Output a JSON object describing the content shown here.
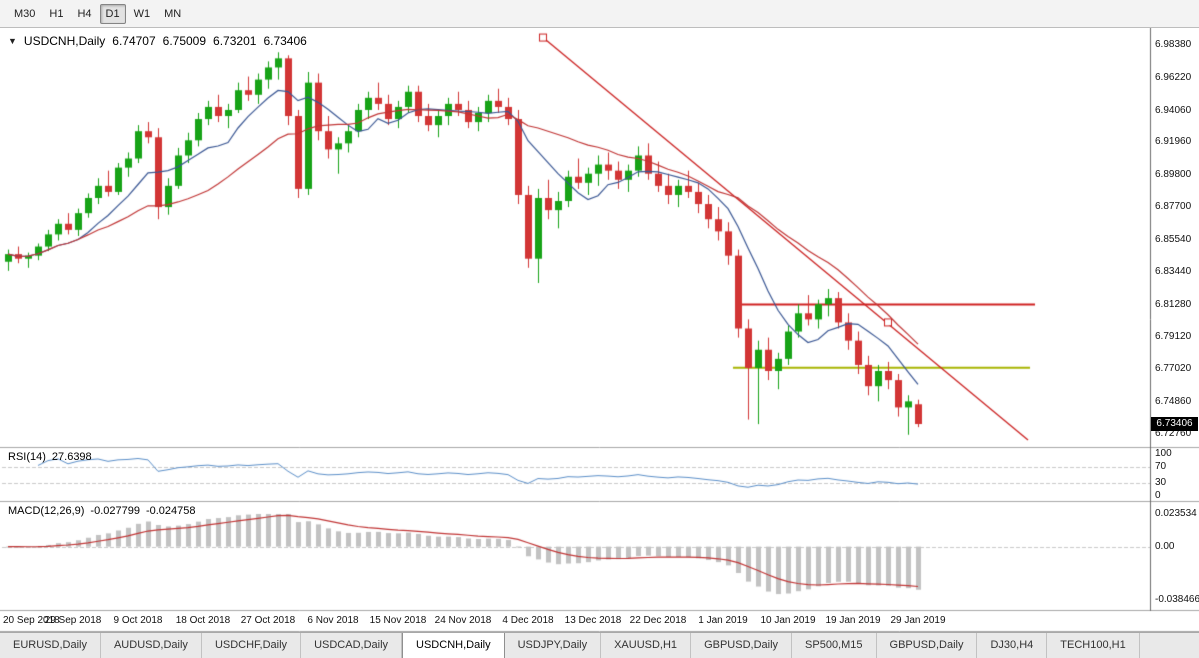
{
  "toolbar": {
    "timeframes": [
      {
        "label": "M30",
        "active": false
      },
      {
        "label": "H1",
        "active": false
      },
      {
        "label": "H4",
        "active": false
      },
      {
        "label": "D1",
        "active": true
      },
      {
        "label": "W1",
        "active": false
      },
      {
        "label": "MN",
        "active": false
      }
    ]
  },
  "chart_header": {
    "symbol": "USDCNH,Daily",
    "open": "6.74707",
    "high": "6.75009",
    "low": "6.73201",
    "close": "6.73406"
  },
  "rsi": {
    "label": "RSI(14)",
    "value": "27.6398",
    "levels": [
      "100",
      "70",
      "30",
      "0"
    ]
  },
  "macd": {
    "label": "MACD(12,26,9)",
    "value_macd": "-0.027799",
    "value_signal": "-0.024758",
    "axis": [
      "0.023534",
      "0.00",
      "-0.038466"
    ]
  },
  "chart_data": {
    "type": "candlestick",
    "symbol": "USDCNH",
    "timeframe": "Daily",
    "current_price": 6.73406,
    "y_axis": {
      "labels": [
        "6.98380",
        "6.96220",
        "6.94060",
        "6.91960",
        "6.89800",
        "6.87700",
        "6.85540",
        "6.83440",
        "6.81280",
        "6.79120",
        "6.77020",
        "6.74860",
        "6.72760"
      ],
      "min": 6.7194,
      "max": 6.9937
    },
    "x_axis": {
      "labels": [
        "20 Sep 2018",
        "29 Sep 2018",
        "9 Oct 2018",
        "18 Oct 2018",
        "27 Oct 2018",
        "6 Nov 2018",
        "15 Nov 2018",
        "24 Nov 2018",
        "4 Dec 2018",
        "13 Dec 2018",
        "22 Dec 2018",
        "1 Jan 2019",
        "10 Jan 2019",
        "19 Jan 2019",
        "29 Jan 2019"
      ],
      "tick_step_candles": 6.5
    },
    "candles": [
      [
        6.841,
        6.849,
        6.835,
        6.846
      ],
      [
        6.846,
        6.851,
        6.84,
        6.843
      ],
      [
        6.843,
        6.847,
        6.837,
        6.845
      ],
      [
        6.845,
        6.853,
        6.842,
        6.851
      ],
      [
        6.851,
        6.862,
        6.848,
        6.859
      ],
      [
        6.859,
        6.869,
        6.855,
        6.866
      ],
      [
        6.866,
        6.873,
        6.859,
        6.862
      ],
      [
        6.862,
        6.876,
        6.858,
        6.873
      ],
      [
        6.873,
        6.886,
        6.87,
        6.883
      ],
      [
        6.883,
        6.896,
        6.879,
        6.891
      ],
      [
        6.891,
        6.901,
        6.884,
        6.887
      ],
      [
        6.887,
        6.906,
        6.885,
        6.903
      ],
      [
        6.903,
        6.913,
        6.897,
        6.909
      ],
      [
        6.909,
        6.931,
        6.906,
        6.927
      ],
      [
        6.927,
        6.933,
        6.919,
        6.923
      ],
      [
        6.923,
        6.929,
        6.869,
        6.877
      ],
      [
        6.877,
        6.896,
        6.872,
        6.891
      ],
      [
        6.891,
        6.916,
        6.889,
        6.911
      ],
      [
        6.911,
        6.926,
        6.906,
        6.921
      ],
      [
        6.921,
        6.939,
        6.917,
        6.935
      ],
      [
        6.935,
        6.947,
        6.931,
        6.943
      ],
      [
        6.943,
        6.951,
        6.933,
        6.937
      ],
      [
        6.937,
        6.945,
        6.929,
        6.941
      ],
      [
        6.941,
        6.959,
        6.939,
        6.954
      ],
      [
        6.954,
        6.963,
        6.947,
        6.951
      ],
      [
        6.951,
        6.965,
        6.945,
        6.961
      ],
      [
        6.961,
        6.973,
        6.955,
        6.969
      ],
      [
        6.969,
        6.979,
        6.961,
        6.975
      ],
      [
        6.975,
        6.977,
        6.931,
        6.937
      ],
      [
        6.937,
        6.941,
        6.883,
        6.889
      ],
      [
        6.889,
        6.966,
        6.885,
        6.959
      ],
      [
        6.959,
        6.965,
        6.921,
        6.927
      ],
      [
        6.927,
        6.937,
        6.909,
        6.915
      ],
      [
        6.915,
        6.923,
        6.899,
        6.919
      ],
      [
        6.919,
        6.931,
        6.913,
        6.927
      ],
      [
        6.927,
        6.945,
        6.923,
        6.941
      ],
      [
        6.941,
        6.953,
        6.935,
        6.949
      ],
      [
        6.949,
        6.959,
        6.941,
        6.945
      ],
      [
        6.945,
        6.951,
        6.931,
        6.935
      ],
      [
        6.935,
        6.947,
        6.929,
        6.943
      ],
      [
        6.943,
        6.957,
        6.939,
        6.953
      ],
      [
        6.953,
        6.957,
        6.933,
        6.937
      ],
      [
        6.937,
        6.945,
        6.927,
        6.931
      ],
      [
        6.931,
        6.941,
        6.923,
        6.937
      ],
      [
        6.937,
        6.949,
        6.931,
        6.945
      ],
      [
        6.945,
        6.953,
        6.937,
        6.941
      ],
      [
        6.941,
        6.947,
        6.929,
        6.933
      ],
      [
        6.933,
        6.943,
        6.927,
        6.939
      ],
      [
        6.939,
        6.951,
        6.933,
        6.947
      ],
      [
        6.947,
        6.955,
        6.939,
        6.943
      ],
      [
        6.943,
        6.949,
        6.931,
        6.935
      ],
      [
        6.935,
        6.941,
        6.879,
        6.885
      ],
      [
        6.885,
        6.891,
        6.837,
        6.843
      ],
      [
        6.843,
        6.889,
        6.827,
        6.883
      ],
      [
        6.883,
        6.895,
        6.869,
        6.875
      ],
      [
        6.875,
        6.887,
        6.863,
        6.881
      ],
      [
        6.881,
        6.901,
        6.877,
        6.897
      ],
      [
        6.897,
        6.909,
        6.889,
        6.893
      ],
      [
        6.893,
        6.903,
        6.885,
        6.899
      ],
      [
        6.899,
        6.911,
        6.891,
        6.905
      ],
      [
        6.905,
        6.913,
        6.895,
        6.901
      ],
      [
        6.901,
        6.907,
        6.889,
        6.895
      ],
      [
        6.895,
        6.905,
        6.887,
        6.901
      ],
      [
        6.901,
        6.917,
        6.897,
        6.911
      ],
      [
        6.911,
        6.919,
        6.895,
        6.899
      ],
      [
        6.899,
        6.907,
        6.887,
        6.891
      ],
      [
        6.891,
        6.899,
        6.879,
        6.885
      ],
      [
        6.885,
        6.895,
        6.877,
        6.891
      ],
      [
        6.891,
        6.901,
        6.883,
        6.887
      ],
      [
        6.887,
        6.893,
        6.873,
        6.879
      ],
      [
        6.879,
        6.885,
        6.863,
        6.869
      ],
      [
        6.869,
        6.877,
        6.855,
        6.861
      ],
      [
        6.861,
        6.867,
        6.839,
        6.845
      ],
      [
        6.845,
        6.849,
        6.791,
        6.797
      ],
      [
        6.797,
        6.803,
        6.737,
        6.771
      ],
      [
        6.771,
        6.789,
        6.734,
        6.783
      ],
      [
        6.783,
        6.791,
        6.763,
        6.769
      ],
      [
        6.769,
        6.781,
        6.757,
        6.777
      ],
      [
        6.777,
        6.799,
        6.773,
        6.795
      ],
      [
        6.795,
        6.813,
        6.791,
        6.807
      ],
      [
        6.807,
        6.819,
        6.799,
        6.803
      ],
      [
        6.803,
        6.816,
        6.797,
        6.813
      ],
      [
        6.813,
        6.823,
        6.805,
        6.817
      ],
      [
        6.817,
        6.821,
        6.797,
        6.801
      ],
      [
        6.801,
        6.807,
        6.783,
        6.789
      ],
      [
        6.789,
        6.795,
        6.767,
        6.773
      ],
      [
        6.773,
        6.779,
        6.753,
        6.759
      ],
      [
        6.759,
        6.773,
        6.749,
        6.769
      ],
      [
        6.769,
        6.775,
        6.757,
        6.763
      ],
      [
        6.763,
        6.767,
        6.739,
        6.745
      ],
      [
        6.745,
        6.753,
        6.727,
        6.749
      ],
      [
        6.74707,
        6.75009,
        6.73201,
        6.73406
      ]
    ],
    "overlays": {
      "ma_fast_period": 8,
      "ma_slow_period": 21,
      "trendline": {
        "from": {
          "index": 53.5,
          "price": 6.9887
        },
        "to": {
          "index": 102,
          "price": 6.7235
        }
      },
      "trendline_handles": [
        {
          "index": 53.5,
          "price": 6.9887
        },
        {
          "index": 88,
          "price": 6.801
        }
      ],
      "hline_red": {
        "price": 6.8128,
        "start_index": 73,
        "end_index": 102.7
      },
      "hline_olive": {
        "price": 6.7712,
        "start_index": 72.5,
        "end_index": 102.2
      }
    },
    "indicators": {
      "rsi": {
        "period": 14,
        "current": 27.6398,
        "levels": [
          100,
          70,
          30,
          0
        ]
      },
      "macd": {
        "fast": 12,
        "slow": 26,
        "signal": 9,
        "current_macd": -0.027799,
        "current_signal": -0.024758,
        "scale_max": 0.023534,
        "scale_min": -0.038466
      }
    }
  },
  "tabs": [
    {
      "label": "EURUSD,Daily",
      "active": false
    },
    {
      "label": "AUDUSD,Daily",
      "active": false
    },
    {
      "label": "USDCHF,Daily",
      "active": false
    },
    {
      "label": "USDCAD,Daily",
      "active": false
    },
    {
      "label": "USDCNH,Daily",
      "active": true
    },
    {
      "label": "USDJPY,Daily",
      "active": false
    },
    {
      "label": "XAUUSD,H1",
      "active": false
    },
    {
      "label": "GBPUSD,Daily",
      "active": false
    },
    {
      "label": "SP500,M15",
      "active": false
    },
    {
      "label": "GBPUSD,Daily",
      "active": false
    },
    {
      "label": "DJ30,H4",
      "active": false
    },
    {
      "label": "TECH100,H1",
      "active": false
    }
  ],
  "colors": {
    "candle_up": "#17a317",
    "candle_down": "#d23535",
    "ma_fast": "#3a5794",
    "ma_slow": "#c13535",
    "trendline": "#cc2222",
    "hline_red": "#d02020",
    "hline_olive": "#a8b400",
    "rsi_line": "#5b8fc9",
    "macd_bar": "#c2c2c2",
    "macd_signal": "#c13535",
    "badge_bg": "#000000"
  }
}
